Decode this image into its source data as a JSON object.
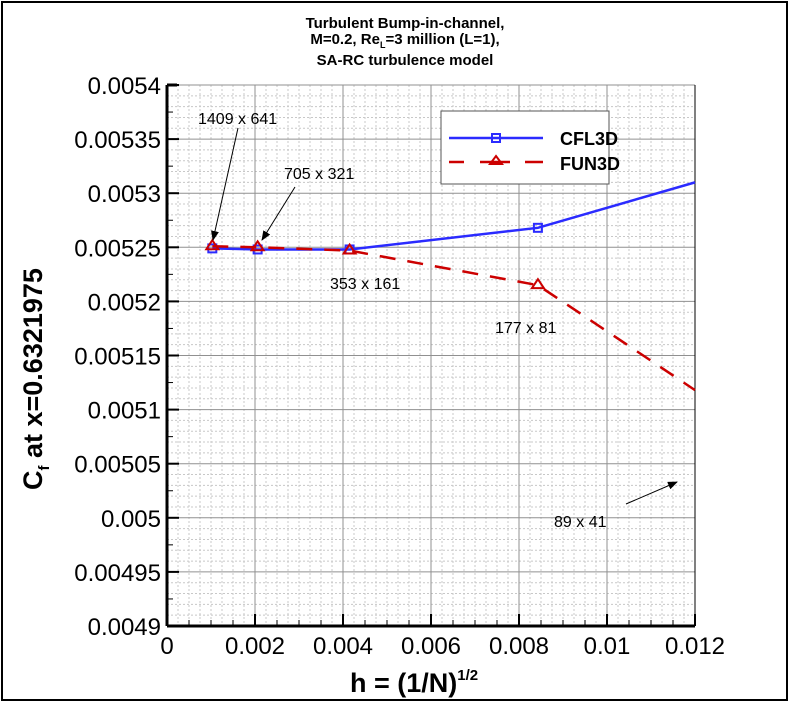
{
  "chart_data": {
    "type": "line",
    "title": [
      "Turbulent Bump-in-channel,",
      "M=0.2, Re_L=3 million (L=1),",
      "SA-RC turbulence model"
    ],
    "xlabel": "h = (1/N)^1/2",
    "ylabel": "C_f at x=0.6321975",
    "xlim": [
      0,
      0.012
    ],
    "ylim": [
      0.0049,
      0.0054
    ],
    "x_ticks": [
      "0",
      "0.002",
      "0.004",
      "0.006",
      "0.008",
      "0.01",
      "0.012"
    ],
    "y_ticks": [
      "0.0049",
      "0.00495",
      "0.005",
      "0.00505",
      "0.0051",
      "0.00515",
      "0.0052",
      "0.00525",
      "0.0053",
      "0.00535",
      "0.0054"
    ],
    "grid": true,
    "legend_position": "upper right",
    "series": [
      {
        "name": "CFL3D",
        "color": "#2b2bff",
        "marker": "square",
        "linestyle": "solid",
        "x": [
          0.00103,
          0.00206,
          0.00415,
          0.00843,
          0.012
        ],
        "y": [
          0.005249,
          0.005248,
          0.005248,
          0.005268,
          0.00531
        ]
      },
      {
        "name": "FUN3D",
        "color": "#cc0000",
        "marker": "triangle",
        "linestyle": "dashed",
        "x": [
          0.00103,
          0.00206,
          0.00415,
          0.00843,
          0.012
        ],
        "y": [
          0.005251,
          0.00525,
          0.005247,
          0.005215,
          0.005118
        ]
      }
    ],
    "annotations": [
      {
        "text": "1409 x 641",
        "x": 0.00103
      },
      {
        "text": "705 x 321",
        "x": 0.00206
      },
      {
        "text": "353 x 161",
        "x": 0.00415
      },
      {
        "text": "177 x 81",
        "x": 0.00843
      },
      {
        "text": "89 x 41",
        "x": "off-chart (>0.012)"
      }
    ]
  },
  "title_lines": {
    "l1": "Turbulent Bump-in-channel,",
    "l2a": "M=0.2, Re",
    "l2sub": "L",
    "l2b": "=3 million (L=1),",
    "l3": "SA-RC turbulence model"
  },
  "axes": {
    "x_label_main": "h = (1/N)",
    "x_label_sup": "1/2",
    "y_label_main": "C",
    "y_label_sub": "f",
    "y_label_rest": " at x=0.6321975"
  },
  "legend": {
    "cfl3d": "CFL3D",
    "fun3d": "FUN3D"
  },
  "labels": {
    "a1409": "1409 x 641",
    "a705": "705 x 321",
    "a353": "353 x 161",
    "a177": "177 x 81",
    "a89": "89 x 41"
  },
  "ticks": {
    "x": [
      "0",
      "0.002",
      "0.004",
      "0.006",
      "0.008",
      "0.01",
      "0.012"
    ],
    "y": [
      "0.0049",
      "0.00495",
      "0.005",
      "0.00505",
      "0.0051",
      "0.00515",
      "0.0052",
      "0.00525",
      "0.0053",
      "0.00535",
      "0.0054"
    ]
  }
}
